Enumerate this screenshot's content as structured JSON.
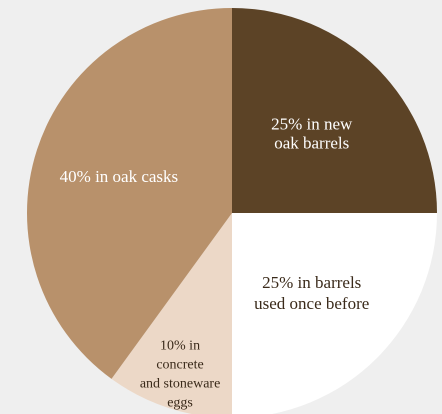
{
  "chart_data": {
    "type": "pie",
    "start": "12 o'clock",
    "direction": "clockwise",
    "slices": [
      {
        "value": 25,
        "color": "#5c4326",
        "label_color": "#ffffff",
        "label_lines": [
          "25% in new",
          "oak barrels"
        ]
      },
      {
        "value": 25,
        "color": "#ffffff",
        "label_color": "#3a2a1a",
        "label_lines": [
          "25% in barrels",
          "used once before"
        ]
      },
      {
        "value": 10,
        "color": "#ecd8c7",
        "label_color": "#3a2a1a",
        "label_lines": [
          "10% in",
          "concrete",
          "and stoneware",
          "eggs"
        ]
      },
      {
        "value": 40,
        "color": "#b8916b",
        "label_color": "#ffffff",
        "label_lines": [
          "40% in oak casks"
        ]
      }
    ]
  },
  "background_color": "#efefef"
}
